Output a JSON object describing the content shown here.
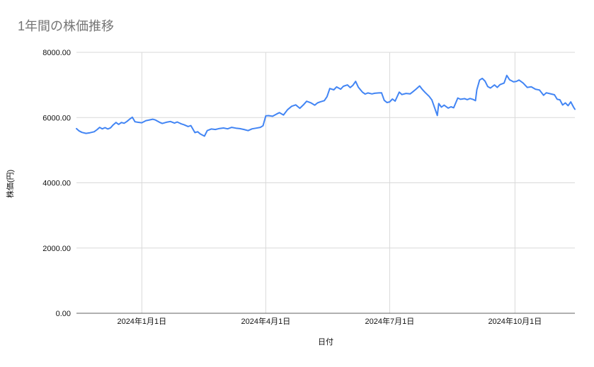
{
  "title": "1年間の株価推移",
  "colors": {
    "line": "#4285f4",
    "grid": "#d9d9d9",
    "axis_line": "#616161",
    "tick_label": "#111111",
    "title": "#757575",
    "background": "#ffffff"
  },
  "chart_data": {
    "type": "line",
    "title": "1年間の株価推移",
    "xlabel": "日付",
    "ylabel": "株価(円)",
    "ylim": [
      0,
      8000
    ],
    "xlim": [
      "2023-11-14",
      "2024-11-14"
    ],
    "grid": true,
    "legend": "none",
    "y_ticks": [
      {
        "value": 0,
        "label": "0.00"
      },
      {
        "value": 2000,
        "label": "2000.00"
      },
      {
        "value": 4000,
        "label": "4000.00"
      },
      {
        "value": 6000,
        "label": "6000.00"
      },
      {
        "value": 8000,
        "label": "8000.00"
      }
    ],
    "x_ticks": [
      {
        "date": "2024-01-01",
        "label": "2024年1月1日"
      },
      {
        "date": "2024-04-01",
        "label": "2024年4月1日"
      },
      {
        "date": "2024-07-01",
        "label": "2024年7月1日"
      },
      {
        "date": "2024-10-01",
        "label": "2024年10月1日"
      }
    ],
    "series": [
      {
        "name": "株価",
        "points": [
          [
            "2023-11-14",
            5660
          ],
          [
            "2023-11-16",
            5590
          ],
          [
            "2023-11-18",
            5545
          ],
          [
            "2023-11-21",
            5515
          ],
          [
            "2023-11-24",
            5535
          ],
          [
            "2023-11-27",
            5565
          ],
          [
            "2023-11-29",
            5625
          ],
          [
            "2023-12-01",
            5700
          ],
          [
            "2023-12-03",
            5655
          ],
          [
            "2023-12-05",
            5690
          ],
          [
            "2023-12-07",
            5650
          ],
          [
            "2023-12-09",
            5685
          ],
          [
            "2023-12-11",
            5775
          ],
          [
            "2023-12-13",
            5850
          ],
          [
            "2023-12-15",
            5790
          ],
          [
            "2023-12-17",
            5850
          ],
          [
            "2023-12-19",
            5825
          ],
          [
            "2023-12-21",
            5880
          ],
          [
            "2023-12-23",
            5950
          ],
          [
            "2023-12-25",
            6010
          ],
          [
            "2023-12-27",
            5870
          ],
          [
            "2023-12-29",
            5855
          ],
          [
            "2024-01-01",
            5840
          ],
          [
            "2024-01-04",
            5905
          ],
          [
            "2024-01-06",
            5920
          ],
          [
            "2024-01-09",
            5950
          ],
          [
            "2024-01-11",
            5925
          ],
          [
            "2024-01-14",
            5855
          ],
          [
            "2024-01-16",
            5820
          ],
          [
            "2024-01-19",
            5855
          ],
          [
            "2024-01-22",
            5880
          ],
          [
            "2024-01-25",
            5830
          ],
          [
            "2024-01-27",
            5865
          ],
          [
            "2024-01-30",
            5805
          ],
          [
            "2024-02-01",
            5780
          ],
          [
            "2024-02-04",
            5725
          ],
          [
            "2024-02-06",
            5755
          ],
          [
            "2024-02-09",
            5540
          ],
          [
            "2024-02-11",
            5565
          ],
          [
            "2024-02-13",
            5495
          ],
          [
            "2024-02-16",
            5430
          ],
          [
            "2024-02-18",
            5600
          ],
          [
            "2024-02-21",
            5650
          ],
          [
            "2024-02-24",
            5635
          ],
          [
            "2024-02-27",
            5665
          ],
          [
            "2024-03-01",
            5680
          ],
          [
            "2024-03-04",
            5655
          ],
          [
            "2024-03-07",
            5700
          ],
          [
            "2024-03-10",
            5675
          ],
          [
            "2024-03-13",
            5660
          ],
          [
            "2024-03-16",
            5635
          ],
          [
            "2024-03-19",
            5600
          ],
          [
            "2024-03-22",
            5655
          ],
          [
            "2024-03-25",
            5675
          ],
          [
            "2024-03-28",
            5700
          ],
          [
            "2024-03-30",
            5750
          ],
          [
            "2024-04-01",
            6050
          ],
          [
            "2024-04-03",
            6060
          ],
          [
            "2024-04-06",
            6040
          ],
          [
            "2024-04-09",
            6110
          ],
          [
            "2024-04-11",
            6150
          ],
          [
            "2024-04-14",
            6080
          ],
          [
            "2024-04-17",
            6240
          ],
          [
            "2024-04-20",
            6345
          ],
          [
            "2024-04-23",
            6390
          ],
          [
            "2024-04-26",
            6285
          ],
          [
            "2024-04-29",
            6405
          ],
          [
            "2024-05-01",
            6500
          ],
          [
            "2024-05-04",
            6455
          ],
          [
            "2024-05-07",
            6380
          ],
          [
            "2024-05-09",
            6450
          ],
          [
            "2024-05-11",
            6480
          ],
          [
            "2024-05-14",
            6520
          ],
          [
            "2024-05-16",
            6640
          ],
          [
            "2024-05-18",
            6890
          ],
          [
            "2024-05-21",
            6850
          ],
          [
            "2024-05-23",
            6940
          ],
          [
            "2024-05-26",
            6870
          ],
          [
            "2024-05-28",
            6960
          ],
          [
            "2024-05-31",
            7000
          ],
          [
            "2024-06-02",
            6920
          ],
          [
            "2024-06-04",
            6990
          ],
          [
            "2024-06-06",
            7110
          ],
          [
            "2024-06-08",
            6930
          ],
          [
            "2024-06-11",
            6780
          ],
          [
            "2024-06-13",
            6720
          ],
          [
            "2024-06-15",
            6755
          ],
          [
            "2024-06-18",
            6725
          ],
          [
            "2024-06-20",
            6745
          ],
          [
            "2024-06-23",
            6755
          ],
          [
            "2024-06-25",
            6760
          ],
          [
            "2024-06-27",
            6530
          ],
          [
            "2024-06-29",
            6460
          ],
          [
            "2024-07-01",
            6480
          ],
          [
            "2024-07-03",
            6570
          ],
          [
            "2024-07-05",
            6505
          ],
          [
            "2024-07-08",
            6780
          ],
          [
            "2024-07-10",
            6705
          ],
          [
            "2024-07-13",
            6740
          ],
          [
            "2024-07-16",
            6725
          ],
          [
            "2024-07-18",
            6790
          ],
          [
            "2024-07-20",
            6860
          ],
          [
            "2024-07-23",
            6970
          ],
          [
            "2024-07-25",
            6860
          ],
          [
            "2024-07-27",
            6770
          ],
          [
            "2024-07-30",
            6650
          ],
          [
            "2024-08-01",
            6540
          ],
          [
            "2024-08-03",
            6300
          ],
          [
            "2024-08-05",
            6065
          ],
          [
            "2024-08-06",
            6430
          ],
          [
            "2024-08-08",
            6320
          ],
          [
            "2024-08-10",
            6380
          ],
          [
            "2024-08-13",
            6290
          ],
          [
            "2024-08-15",
            6330
          ],
          [
            "2024-08-17",
            6300
          ],
          [
            "2024-08-20",
            6600
          ],
          [
            "2024-08-22",
            6560
          ],
          [
            "2024-08-25",
            6580
          ],
          [
            "2024-08-27",
            6550
          ],
          [
            "2024-08-29",
            6585
          ],
          [
            "2024-08-31",
            6560
          ],
          [
            "2024-09-02",
            6520
          ],
          [
            "2024-09-03",
            6850
          ],
          [
            "2024-09-05",
            7150
          ],
          [
            "2024-09-07",
            7200
          ],
          [
            "2024-09-09",
            7120
          ],
          [
            "2024-09-11",
            6950
          ],
          [
            "2024-09-13",
            6905
          ],
          [
            "2024-09-16",
            7000
          ],
          [
            "2024-09-18",
            6925
          ],
          [
            "2024-09-20",
            7010
          ],
          [
            "2024-09-23",
            7060
          ],
          [
            "2024-09-25",
            7290
          ],
          [
            "2024-09-27",
            7160
          ],
          [
            "2024-09-30",
            7095
          ],
          [
            "2024-10-02",
            7110
          ],
          [
            "2024-10-04",
            7150
          ],
          [
            "2024-10-07",
            7060
          ],
          [
            "2024-10-10",
            6925
          ],
          [
            "2024-10-13",
            6945
          ],
          [
            "2024-10-16",
            6870
          ],
          [
            "2024-10-19",
            6845
          ],
          [
            "2024-10-22",
            6685
          ],
          [
            "2024-10-24",
            6760
          ],
          [
            "2024-10-27",
            6730
          ],
          [
            "2024-10-30",
            6700
          ],
          [
            "2024-11-01",
            6560
          ],
          [
            "2024-11-03",
            6545
          ],
          [
            "2024-11-05",
            6385
          ],
          [
            "2024-11-07",
            6450
          ],
          [
            "2024-11-09",
            6365
          ],
          [
            "2024-11-11",
            6480
          ],
          [
            "2024-11-13",
            6320
          ],
          [
            "2024-11-14",
            6255
          ]
        ]
      }
    ]
  }
}
